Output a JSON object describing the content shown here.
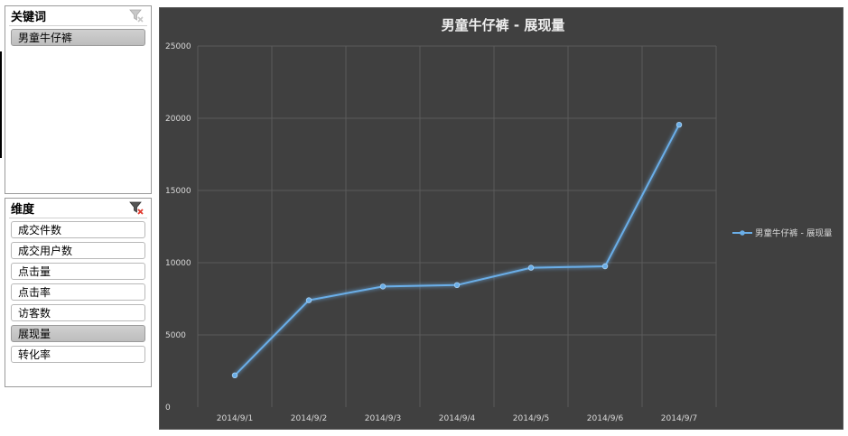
{
  "keyword_slicer": {
    "title": "关键词",
    "items": [
      {
        "label": "男童牛仔裤",
        "selected": true
      }
    ]
  },
  "dimension_slicer": {
    "title": "维度",
    "items": [
      {
        "label": "成交件数",
        "selected": false
      },
      {
        "label": "成交用户数",
        "selected": false
      },
      {
        "label": "点击量",
        "selected": false
      },
      {
        "label": "点击率",
        "selected": false
      },
      {
        "label": "访客数",
        "selected": false
      },
      {
        "label": "展现量",
        "selected": true
      },
      {
        "label": "转化率",
        "selected": false
      }
    ]
  },
  "chart_data": {
    "type": "line",
    "title": "男童牛仔裤 - 展现量",
    "categories": [
      "2014/9/1",
      "2014/9/2",
      "2014/9/3",
      "2014/9/4",
      "2014/9/5",
      "2014/9/6",
      "2014/9/7"
    ],
    "series": [
      {
        "name": "男童牛仔裤 - 展现量",
        "values": [
          2200,
          7400,
          8350,
          8450,
          9650,
          9750,
          19550
        ]
      }
    ],
    "yticks": [
      0,
      5000,
      10000,
      15000,
      20000,
      25000
    ],
    "ylim": [
      0,
      25000
    ],
    "grid": true,
    "legend_position": "right",
    "colors": {
      "background": "#404040",
      "line": "#6aaee8",
      "grid": "#5a5a5a",
      "text": "#d9d9d9"
    }
  }
}
